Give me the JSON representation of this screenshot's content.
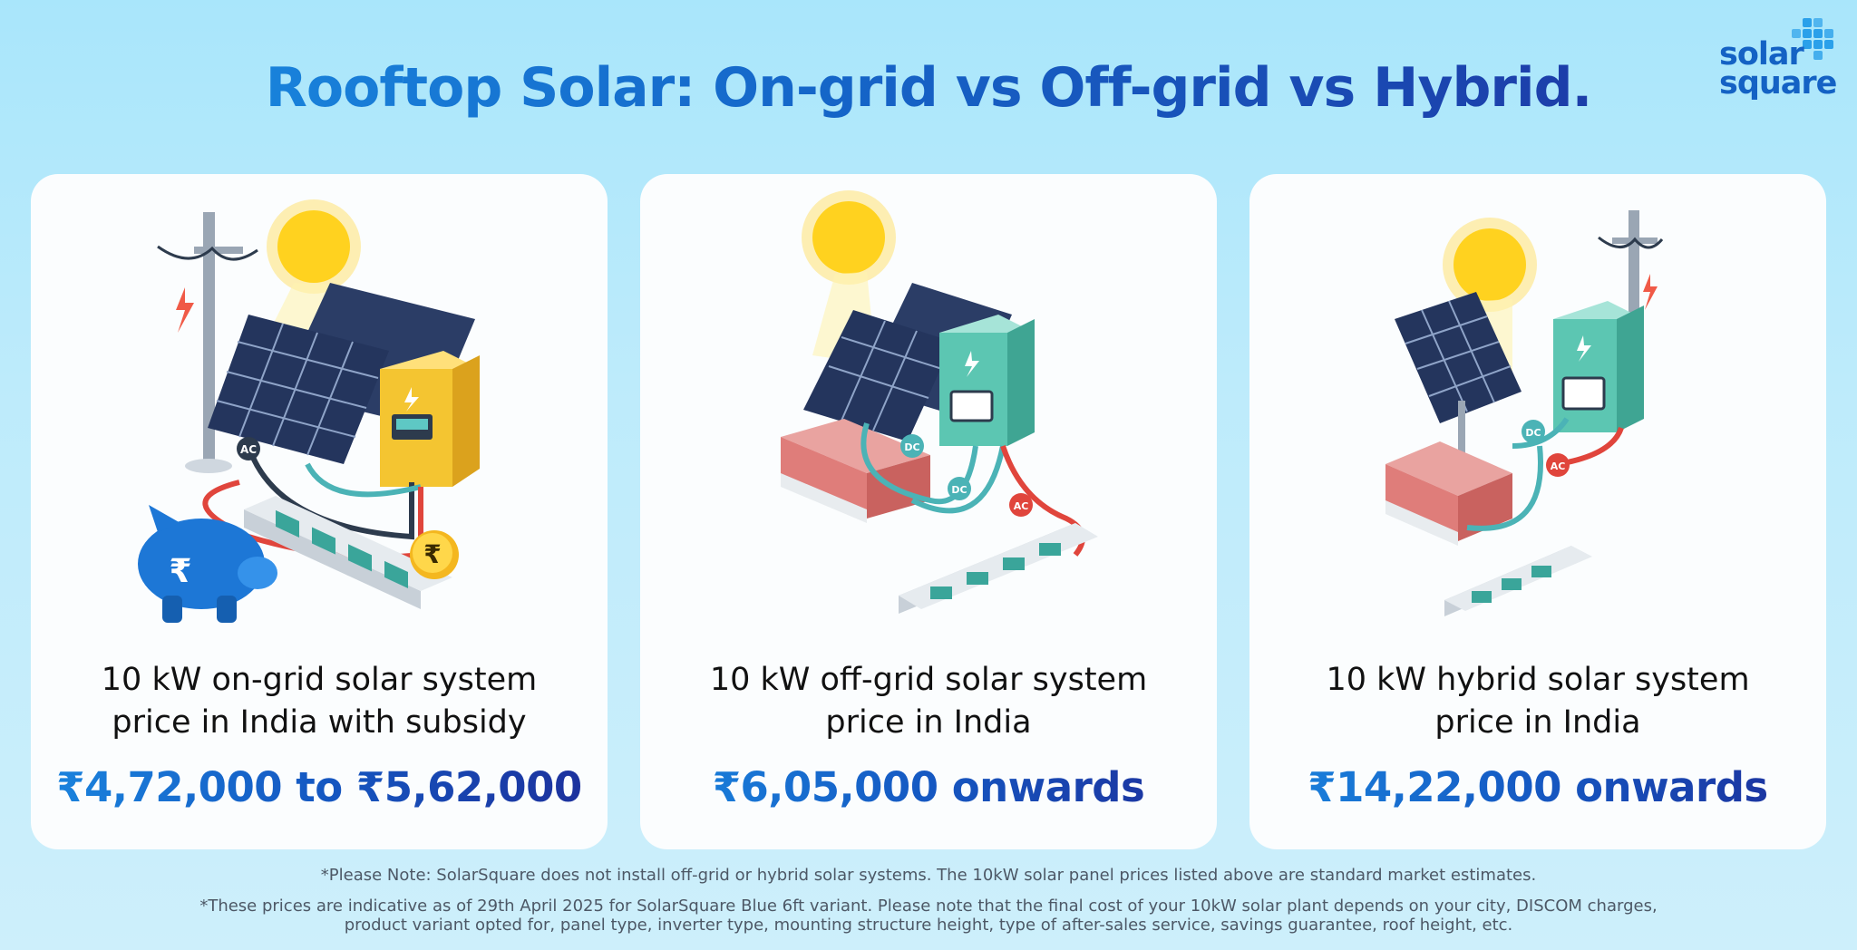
{
  "title": "Rooftop Solar: On-grid vs Off-grid vs Hybrid.",
  "logo": {
    "line1": "solar",
    "line2": "square"
  },
  "cards": [
    {
      "heading_line1": "10 kW on-grid solar system",
      "heading_line2": "price in India with subsidy",
      "price": "₹4,72,000 to ₹5,62,000",
      "labels": {
        "ac": "AC",
        "coin": "₹",
        "piggy": "₹"
      }
    },
    {
      "heading_line1": "10 kW off-grid solar system",
      "heading_line2": "price in India",
      "price": "₹6,05,000 onwards",
      "labels": {
        "dc1": "DC",
        "dc2": "DC",
        "ac": "AC"
      }
    },
    {
      "heading_line1": "10 kW hybrid solar system",
      "heading_line2": "price in India",
      "price": "₹14,22,000 onwards",
      "labels": {
        "dc": "DC",
        "ac": "AC"
      }
    }
  ],
  "notes": {
    "note1": "*Please Note: SolarSquare does not install off-grid or hybrid solar systems. The 10kW solar panel prices listed above are standard market estimates.",
    "note2_line1": "*These prices are indicative as of 29th April 2025 for SolarSquare Blue 6ft variant. Please note that the final cost of your 10kW solar plant depends on your city, DISCOM charges,",
    "note2_line2": "product variant opted for, panel type, inverter type, mounting structure height, type of after-sales service, savings guarantee, roof height, etc."
  },
  "colors": {
    "accent_blue": "#1565c8",
    "inverter_yellow": "#f4c531",
    "inverter_teal": "#5cc6b2",
    "panel_navy": "#24355d",
    "cable_red": "#e0453c",
    "cable_teal": "#4bb3b6",
    "battery_red": "#df7d7a"
  },
  "icons": [
    "sun-icon",
    "solar-panel-icon",
    "inverter-icon",
    "utility-pole-icon",
    "battery-icon",
    "power-strip-icon",
    "piggy-bank-icon",
    "rupee-coin-icon",
    "lightning-icon"
  ]
}
